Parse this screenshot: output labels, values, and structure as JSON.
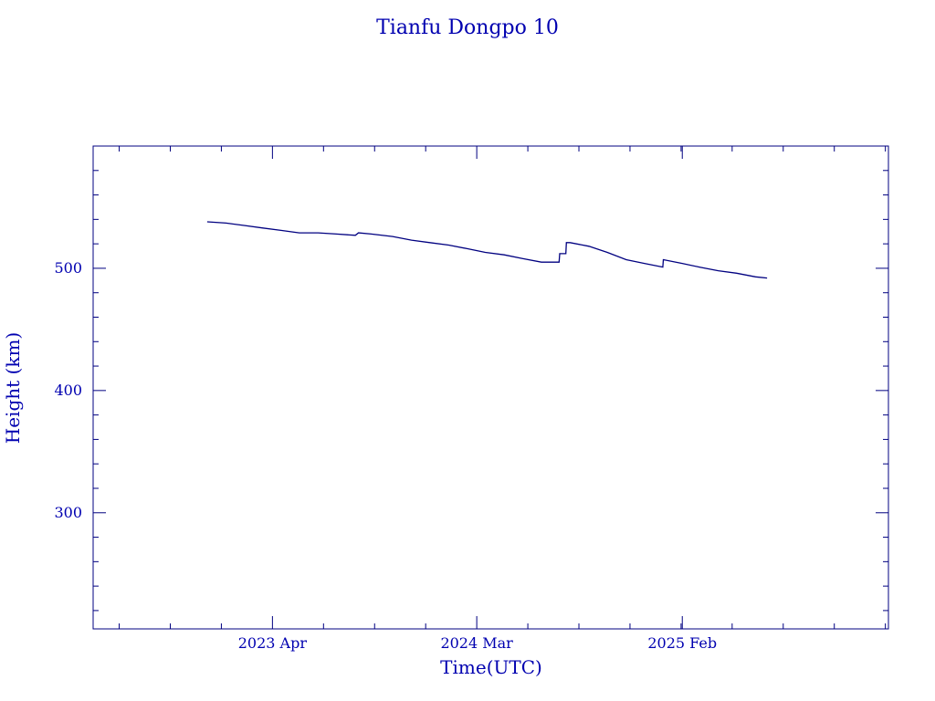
{
  "chart_data": {
    "type": "line",
    "title": "Tianfu Dongpo 10",
    "xlabel": "Time(UTC)",
    "ylabel": "Height (km)",
    "xlim": [
      "2022-06-11",
      "2026-01-05"
    ],
    "ylim": [
      205,
      600
    ],
    "xticks": [
      {
        "date": "2023-04-01",
        "label": "2023 Apr"
      },
      {
        "date": "2024-03-01",
        "label": "2024 Mar"
      },
      {
        "date": "2025-02-01",
        "label": "2025 Feb"
      }
    ],
    "yticks": [
      300,
      400,
      500
    ],
    "grid": false,
    "color": "#000080",
    "series": [
      {
        "x": [
          "2022-12-15",
          "2023-01-15",
          "2023-02-15",
          "2023-03-15",
          "2023-04-15",
          "2023-05-15",
          "2023-06-15",
          "2023-07-15",
          "2023-08-15",
          "2023-08-20",
          "2023-09-10",
          "2023-10-15",
          "2023-11-15",
          "2023-12-15",
          "2024-01-15",
          "2024-02-15",
          "2024-03-15",
          "2024-04-15",
          "2024-05-15",
          "2024-06-15",
          "2024-07-14",
          "2024-07-15",
          "2024-07-25",
          "2024-07-26",
          "2024-08-01",
          "2024-09-01",
          "2024-10-01",
          "2024-11-01",
          "2024-12-01",
          "2024-12-31",
          "2025-01-01",
          "2025-02-01",
          "2025-03-01",
          "2025-04-01",
          "2025-05-01",
          "2025-06-01",
          "2025-06-20"
        ],
        "y": [
          538,
          537,
          535,
          533,
          531,
          529,
          529,
          528,
          527,
          529,
          528,
          526,
          523,
          521,
          519,
          516,
          513,
          511,
          508,
          505,
          505,
          512,
          512,
          521,
          521,
          518,
          513,
          507,
          504,
          501,
          507,
          504,
          501,
          498,
          496,
          493,
          492
        ]
      }
    ]
  }
}
